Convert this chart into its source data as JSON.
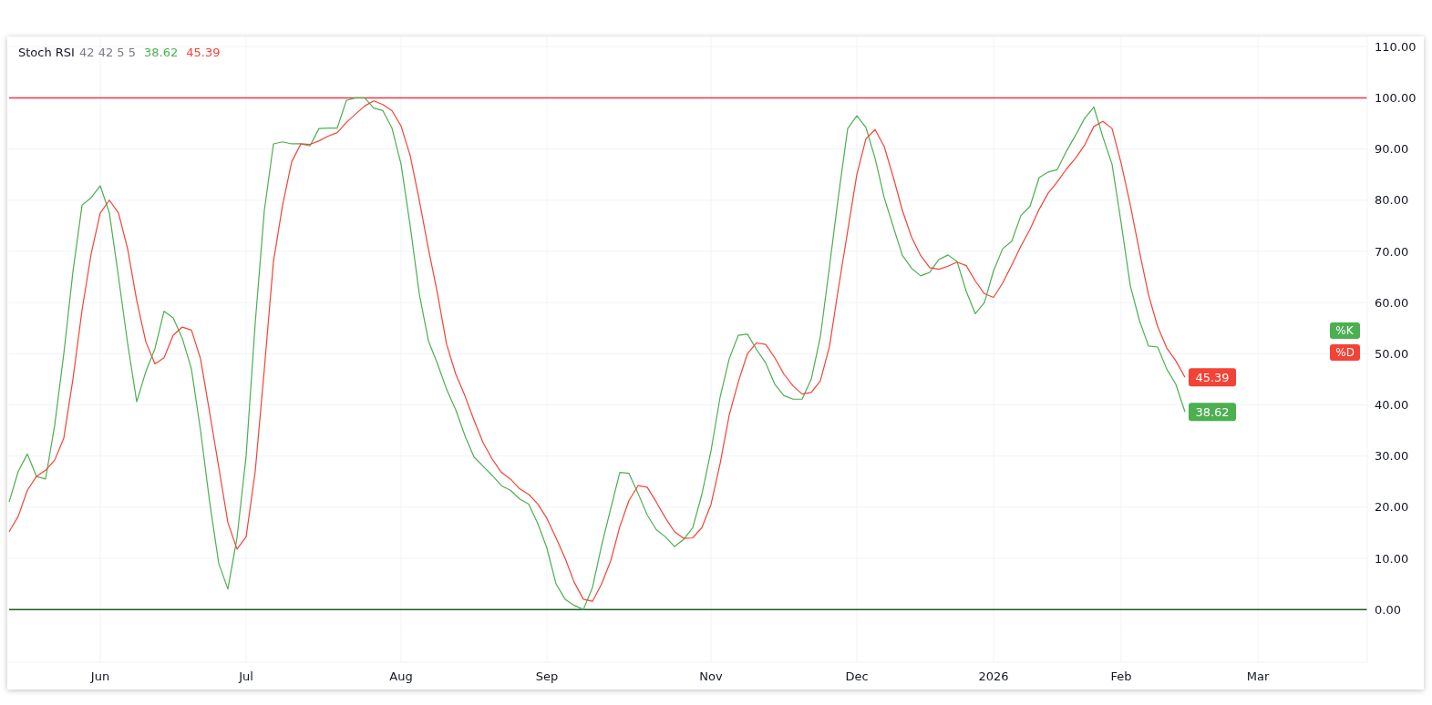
{
  "chart_data": {
    "type": "line",
    "title": "Stoch RSI",
    "subtitle": "42 42 5 5",
    "categories": [
      null,
      null,
      null,
      null,
      null,
      null,
      null,
      null,
      null,
      null,
      "Jun",
      null,
      null,
      null,
      null,
      null,
      null,
      null,
      null,
      null,
      null,
      null,
      null,
      null,
      null,
      null,
      "Jul",
      null,
      null,
      null,
      null,
      null,
      null,
      null,
      null,
      null,
      null,
      null,
      null,
      null,
      null,
      null,
      null,
      "Aug",
      null,
      null,
      null,
      null,
      null,
      null,
      null,
      null,
      null,
      null,
      null,
      null,
      null,
      null,
      null,
      "Sep",
      null,
      null,
      null,
      null,
      null,
      null,
      null,
      null,
      null,
      null,
      null,
      null,
      null,
      null,
      null,
      null,
      null,
      "Nov",
      null,
      null,
      null,
      null,
      null,
      null,
      null,
      null,
      null,
      null,
      null,
      null,
      null,
      null,
      null,
      "Dec",
      null,
      null,
      null,
      null,
      null,
      null,
      null,
      null,
      null,
      null,
      null,
      null,
      null,
      null,
      "2026",
      null,
      null,
      null,
      null,
      null,
      null,
      null,
      null,
      null,
      null,
      null,
      null,
      null,
      "Feb",
      null,
      null,
      null,
      null,
      null,
      null,
      null,
      null,
      null,
      null,
      null,
      null,
      null,
      null,
      "Mar",
      null,
      null,
      null,
      null,
      null,
      null,
      null,
      null,
      null,
      null,
      null,
      null
    ],
    "ylim": [
      -10.3,
      112
    ],
    "yticks": [
      {
        "value": 0,
        "label": "0.00"
      },
      {
        "value": 10,
        "label": "10.00"
      },
      {
        "value": 20,
        "label": "20.00"
      },
      {
        "value": 30,
        "label": "30.00"
      },
      {
        "value": 40,
        "label": "40.00"
      },
      {
        "value": 50,
        "label": "50.00"
      },
      {
        "value": 60,
        "label": "60.00"
      },
      {
        "value": 70,
        "label": "70.00"
      },
      {
        "value": 80,
        "label": "80.00"
      },
      {
        "value": 90,
        "label": "90.00"
      },
      {
        "value": 100,
        "label": "100.00"
      },
      {
        "value": 110,
        "label": "110.00"
      }
    ],
    "grid": true,
    "legend": "right",
    "ref_lines": [
      {
        "axis": "y",
        "value": 100,
        "color": "#f23645"
      },
      {
        "axis": "y",
        "value": 0,
        "color": "#1b5e20"
      }
    ],
    "series": [
      {
        "name": "%K",
        "color": "#4caf50",
        "values": [
          21,
          27,
          30.4,
          26,
          25.5,
          36,
          50,
          66,
          79,
          80.5,
          82.8,
          77.5,
          65,
          52,
          40.6,
          46.5,
          51,
          58.3,
          57,
          53,
          47,
          35,
          21,
          9,
          4,
          14,
          30,
          56,
          78,
          91,
          91.4,
          91,
          91,
          90.6,
          94,
          94.1,
          94.1,
          99.5,
          100,
          100,
          98,
          97.5,
          94.1,
          87,
          75,
          61.7,
          52.5,
          48,
          43,
          39,
          34,
          29.8,
          28,
          26.2,
          24.2,
          23.3,
          21.6,
          20.6,
          16.8,
          12,
          5,
          2,
          0.8,
          0,
          4.3,
          12.5,
          19.7,
          26.8,
          26.6,
          22.7,
          18.5,
          15.6,
          14.2,
          12.3,
          13.7,
          16,
          22.5,
          31,
          41.5,
          49,
          53.6,
          53.8,
          50.8,
          48.2,
          44,
          41.8,
          41.1,
          41.1,
          45,
          53.3,
          67,
          81,
          94,
          96.5,
          94.2,
          88.2,
          80.5,
          74.8,
          69.2,
          66.7,
          65.2,
          65.9,
          68.4,
          69.3,
          68,
          62.2,
          57.8,
          60,
          66.2,
          70.5,
          72,
          77,
          78.8,
          84.4,
          85.5,
          86,
          89.6,
          92.7,
          96,
          98.2,
          92.3,
          87,
          75.5,
          63.3,
          56.5,
          51.5,
          51.3,
          47,
          44,
          38.62,
          null,
          null,
          null,
          null,
          null,
          null,
          null,
          null,
          null,
          null,
          null,
          null,
          null,
          null,
          null,
          null,
          null,
          null,
          null,
          null
        ],
        "value_labels": [
          null,
          null,
          null,
          null,
          null,
          null,
          null,
          null,
          null,
          null,
          null,
          null,
          null,
          null,
          null,
          null,
          null,
          null,
          null,
          null,
          null,
          null,
          null,
          null,
          null,
          null,
          null,
          null,
          null,
          null,
          null,
          null,
          null,
          null,
          null,
          null,
          null,
          null,
          null,
          null,
          null,
          null,
          null,
          null,
          null,
          null,
          null,
          null,
          null,
          null,
          null,
          null,
          null,
          null,
          null,
          null,
          null,
          null,
          null,
          null,
          null,
          null,
          null,
          null,
          null,
          null,
          null,
          null,
          null,
          null,
          null,
          null,
          null,
          null,
          null,
          null,
          null,
          null,
          null,
          null,
          null,
          null,
          null,
          null,
          null,
          null,
          null,
          null,
          null,
          null,
          null,
          null,
          null,
          null,
          null,
          null,
          null,
          null,
          null,
          null,
          null,
          null,
          null,
          null,
          null,
          null,
          null,
          null,
          null,
          null,
          null,
          null,
          null,
          null,
          null,
          null,
          null,
          null,
          null,
          null,
          null,
          null,
          null,
          null,
          null,
          null,
          null,
          null,
          null,
          "38.62",
          null,
          null,
          null,
          null,
          null,
          null,
          null,
          null,
          null,
          null,
          null,
          null,
          null,
          null,
          null,
          null,
          null,
          null,
          null,
          null
        ]
      },
      {
        "name": "%D",
        "color": "#f44336",
        "values": [
          15.2,
          18.2,
          23.3,
          26,
          27.2,
          29.2,
          33.5,
          45,
          58.5,
          69.5,
          77.5,
          80,
          77.5,
          70.5,
          60.4,
          52.3,
          48,
          49.2,
          53.6,
          55.2,
          54.6,
          49,
          38.5,
          27.8,
          17,
          11.8,
          14.2,
          27,
          47,
          68,
          79,
          87.5,
          91,
          90.9,
          91.6,
          92.5,
          93.2,
          95.2,
          96.8,
          98.4,
          99.4,
          98.7,
          97.5,
          94.5,
          88.7,
          80,
          70.5,
          61.7,
          51.8,
          46,
          41.8,
          37,
          32.6,
          29.4,
          26.8,
          25.5,
          23.6,
          22.5,
          20.6,
          17.8,
          14,
          10,
          5.3,
          2,
          1.6,
          5,
          9.5,
          16.2,
          21.3,
          24.2,
          23.9,
          21,
          17.9,
          15.2,
          13.9,
          14,
          16,
          20.5,
          28.5,
          38,
          44.5,
          50,
          52.1,
          51.8,
          49.2,
          46,
          43.7,
          42.1,
          42.4,
          44.7,
          51.4,
          63,
          74,
          85,
          92,
          93.8,
          90.5,
          84.5,
          78,
          72.8,
          69.2,
          66.8,
          66.5,
          67.1,
          67.9,
          67.2,
          64.2,
          61.7,
          61,
          63.8,
          67.3,
          71,
          74.3,
          78.2,
          81.4,
          83.6,
          86.1,
          88.2,
          90.8,
          94.4,
          95.4,
          94,
          87.2,
          79.1,
          70,
          61.5,
          55.3,
          51.1,
          48.6,
          45.39,
          null,
          null,
          null,
          null,
          null,
          null,
          null,
          null,
          null,
          null,
          null,
          null,
          null,
          null,
          null,
          null,
          null,
          null,
          null,
          null
        ],
        "value_labels": [
          null,
          null,
          null,
          null,
          null,
          null,
          null,
          null,
          null,
          null,
          null,
          null,
          null,
          null,
          null,
          null,
          null,
          null,
          null,
          null,
          null,
          null,
          null,
          null,
          null,
          null,
          null,
          null,
          null,
          null,
          null,
          null,
          null,
          null,
          null,
          null,
          null,
          null,
          null,
          null,
          null,
          null,
          null,
          null,
          null,
          null,
          null,
          null,
          null,
          null,
          null,
          null,
          null,
          null,
          null,
          null,
          null,
          null,
          null,
          null,
          null,
          null,
          null,
          null,
          null,
          null,
          null,
          null,
          null,
          null,
          null,
          null,
          null,
          null,
          null,
          null,
          null,
          null,
          null,
          null,
          null,
          null,
          null,
          null,
          null,
          null,
          null,
          null,
          null,
          null,
          null,
          null,
          null,
          null,
          null,
          null,
          null,
          null,
          null,
          null,
          null,
          null,
          null,
          null,
          null,
          null,
          null,
          null,
          null,
          null,
          null,
          null,
          null,
          null,
          null,
          null,
          null,
          null,
          null,
          null,
          null,
          null,
          null,
          null,
          null,
          null,
          null,
          null,
          null,
          "45.39",
          null,
          null,
          null,
          null,
          null,
          null,
          null,
          null,
          null,
          null,
          null,
          null,
          null,
          null,
          null,
          null,
          null,
          null,
          null,
          null
        ]
      }
    ]
  }
}
